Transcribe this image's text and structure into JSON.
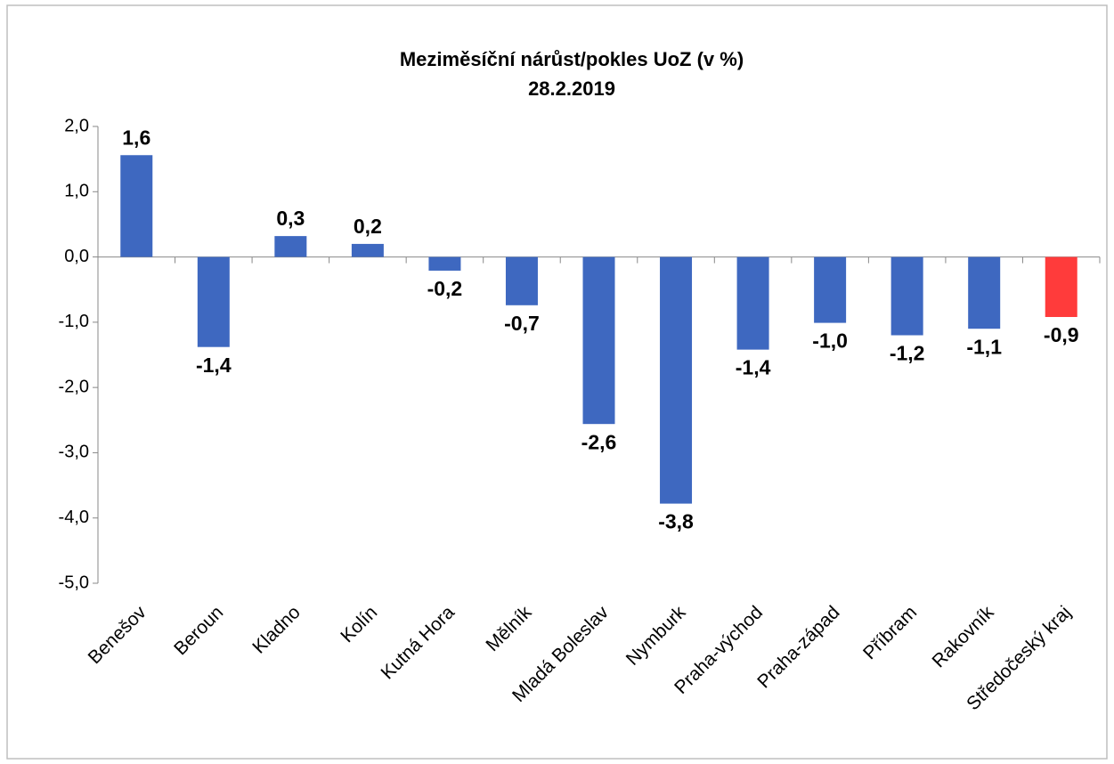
{
  "chart_data": {
    "type": "bar",
    "title": "Meziměsíční nárůst/pokles UoZ (v %)",
    "subtitle": "28.2.2019",
    "categories": [
      "Benešov",
      "Beroun",
      "Kladno",
      "Kolín",
      "Kutná Hora",
      "Mělník",
      "Mladá Boleslav",
      "Nymburk",
      "Praha-východ",
      "Praha-západ",
      "Příbram",
      "Rakovník",
      "Středočeský kraj"
    ],
    "values": [
      1.56,
      -1.38,
      0.32,
      0.2,
      -0.21,
      -0.74,
      -2.56,
      -3.78,
      -1.42,
      -1.01,
      -1.2,
      -1.1,
      -0.92
    ],
    "value_labels": [
      "1,6",
      "-1,4",
      "0,3",
      "0,2",
      "-0,2",
      "-0,7",
      "-2,6",
      "-3,8",
      "-1,4",
      "-1,0",
      "-1,2",
      "-1,1",
      "-0,9"
    ],
    "colors": [
      "#3e68c0",
      "#3e68c0",
      "#3e68c0",
      "#3e68c0",
      "#3e68c0",
      "#3e68c0",
      "#3e68c0",
      "#3e68c0",
      "#3e68c0",
      "#3e68c0",
      "#3e68c0",
      "#3e68c0",
      "#ff3b3b"
    ],
    "ylim": [
      -5,
      2
    ],
    "yticks": [
      {
        "value": -5,
        "label": "-5,0"
      },
      {
        "value": -4,
        "label": "-4,0"
      },
      {
        "value": -3,
        "label": "-3,0"
      },
      {
        "value": -2,
        "label": "-2,0"
      },
      {
        "value": -1,
        "label": "-1,0"
      },
      {
        "value": 0,
        "label": "0,0"
      },
      {
        "value": 1,
        "label": "1,0"
      },
      {
        "value": 2,
        "label": "2,0"
      }
    ],
    "grid": false
  }
}
